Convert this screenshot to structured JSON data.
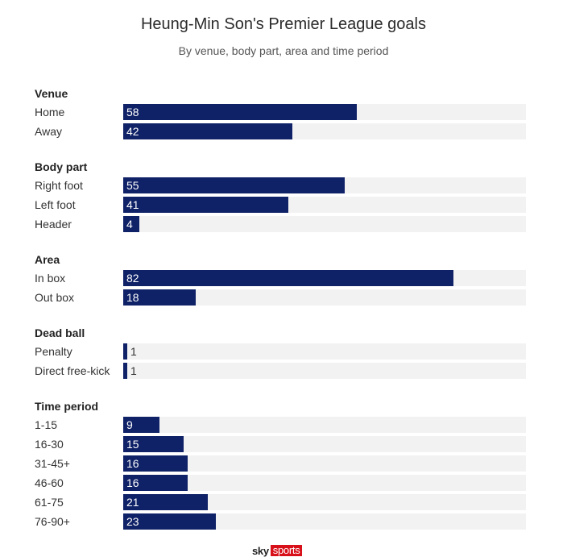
{
  "chart_data": {
    "type": "bar",
    "orientation": "horizontal",
    "title": "Heung-Min Son's Premier League goals",
    "subtitle": "By venue, body part, area and time period",
    "xlim": [
      0,
      100
    ],
    "colors": {
      "bar": "#0f2167",
      "track": "#f2f2f2"
    },
    "groups": [
      {
        "name": "Venue",
        "rows": [
          {
            "label": "Home",
            "value": 58
          },
          {
            "label": "Away",
            "value": 42
          }
        ]
      },
      {
        "name": "Body part",
        "rows": [
          {
            "label": "Right foot",
            "value": 55
          },
          {
            "label": "Left foot",
            "value": 41
          },
          {
            "label": "Header",
            "value": 4
          }
        ]
      },
      {
        "name": "Area",
        "rows": [
          {
            "label": "In box",
            "value": 82
          },
          {
            "label": "Out box",
            "value": 18
          }
        ]
      },
      {
        "name": "Dead ball",
        "rows": [
          {
            "label": "Penalty",
            "value": 1
          },
          {
            "label": "Direct free-kick",
            "value": 1
          }
        ]
      },
      {
        "name": "Time period",
        "rows": [
          {
            "label": "1-15",
            "value": 9
          },
          {
            "label": "16-30",
            "value": 15
          },
          {
            "label": "31-45+",
            "value": 16
          },
          {
            "label": "46-60",
            "value": 16
          },
          {
            "label": "61-75",
            "value": 21
          },
          {
            "label": "76-90+",
            "value": 23
          }
        ]
      }
    ]
  },
  "branding": {
    "logo_left": "sky",
    "logo_right": "sports"
  }
}
